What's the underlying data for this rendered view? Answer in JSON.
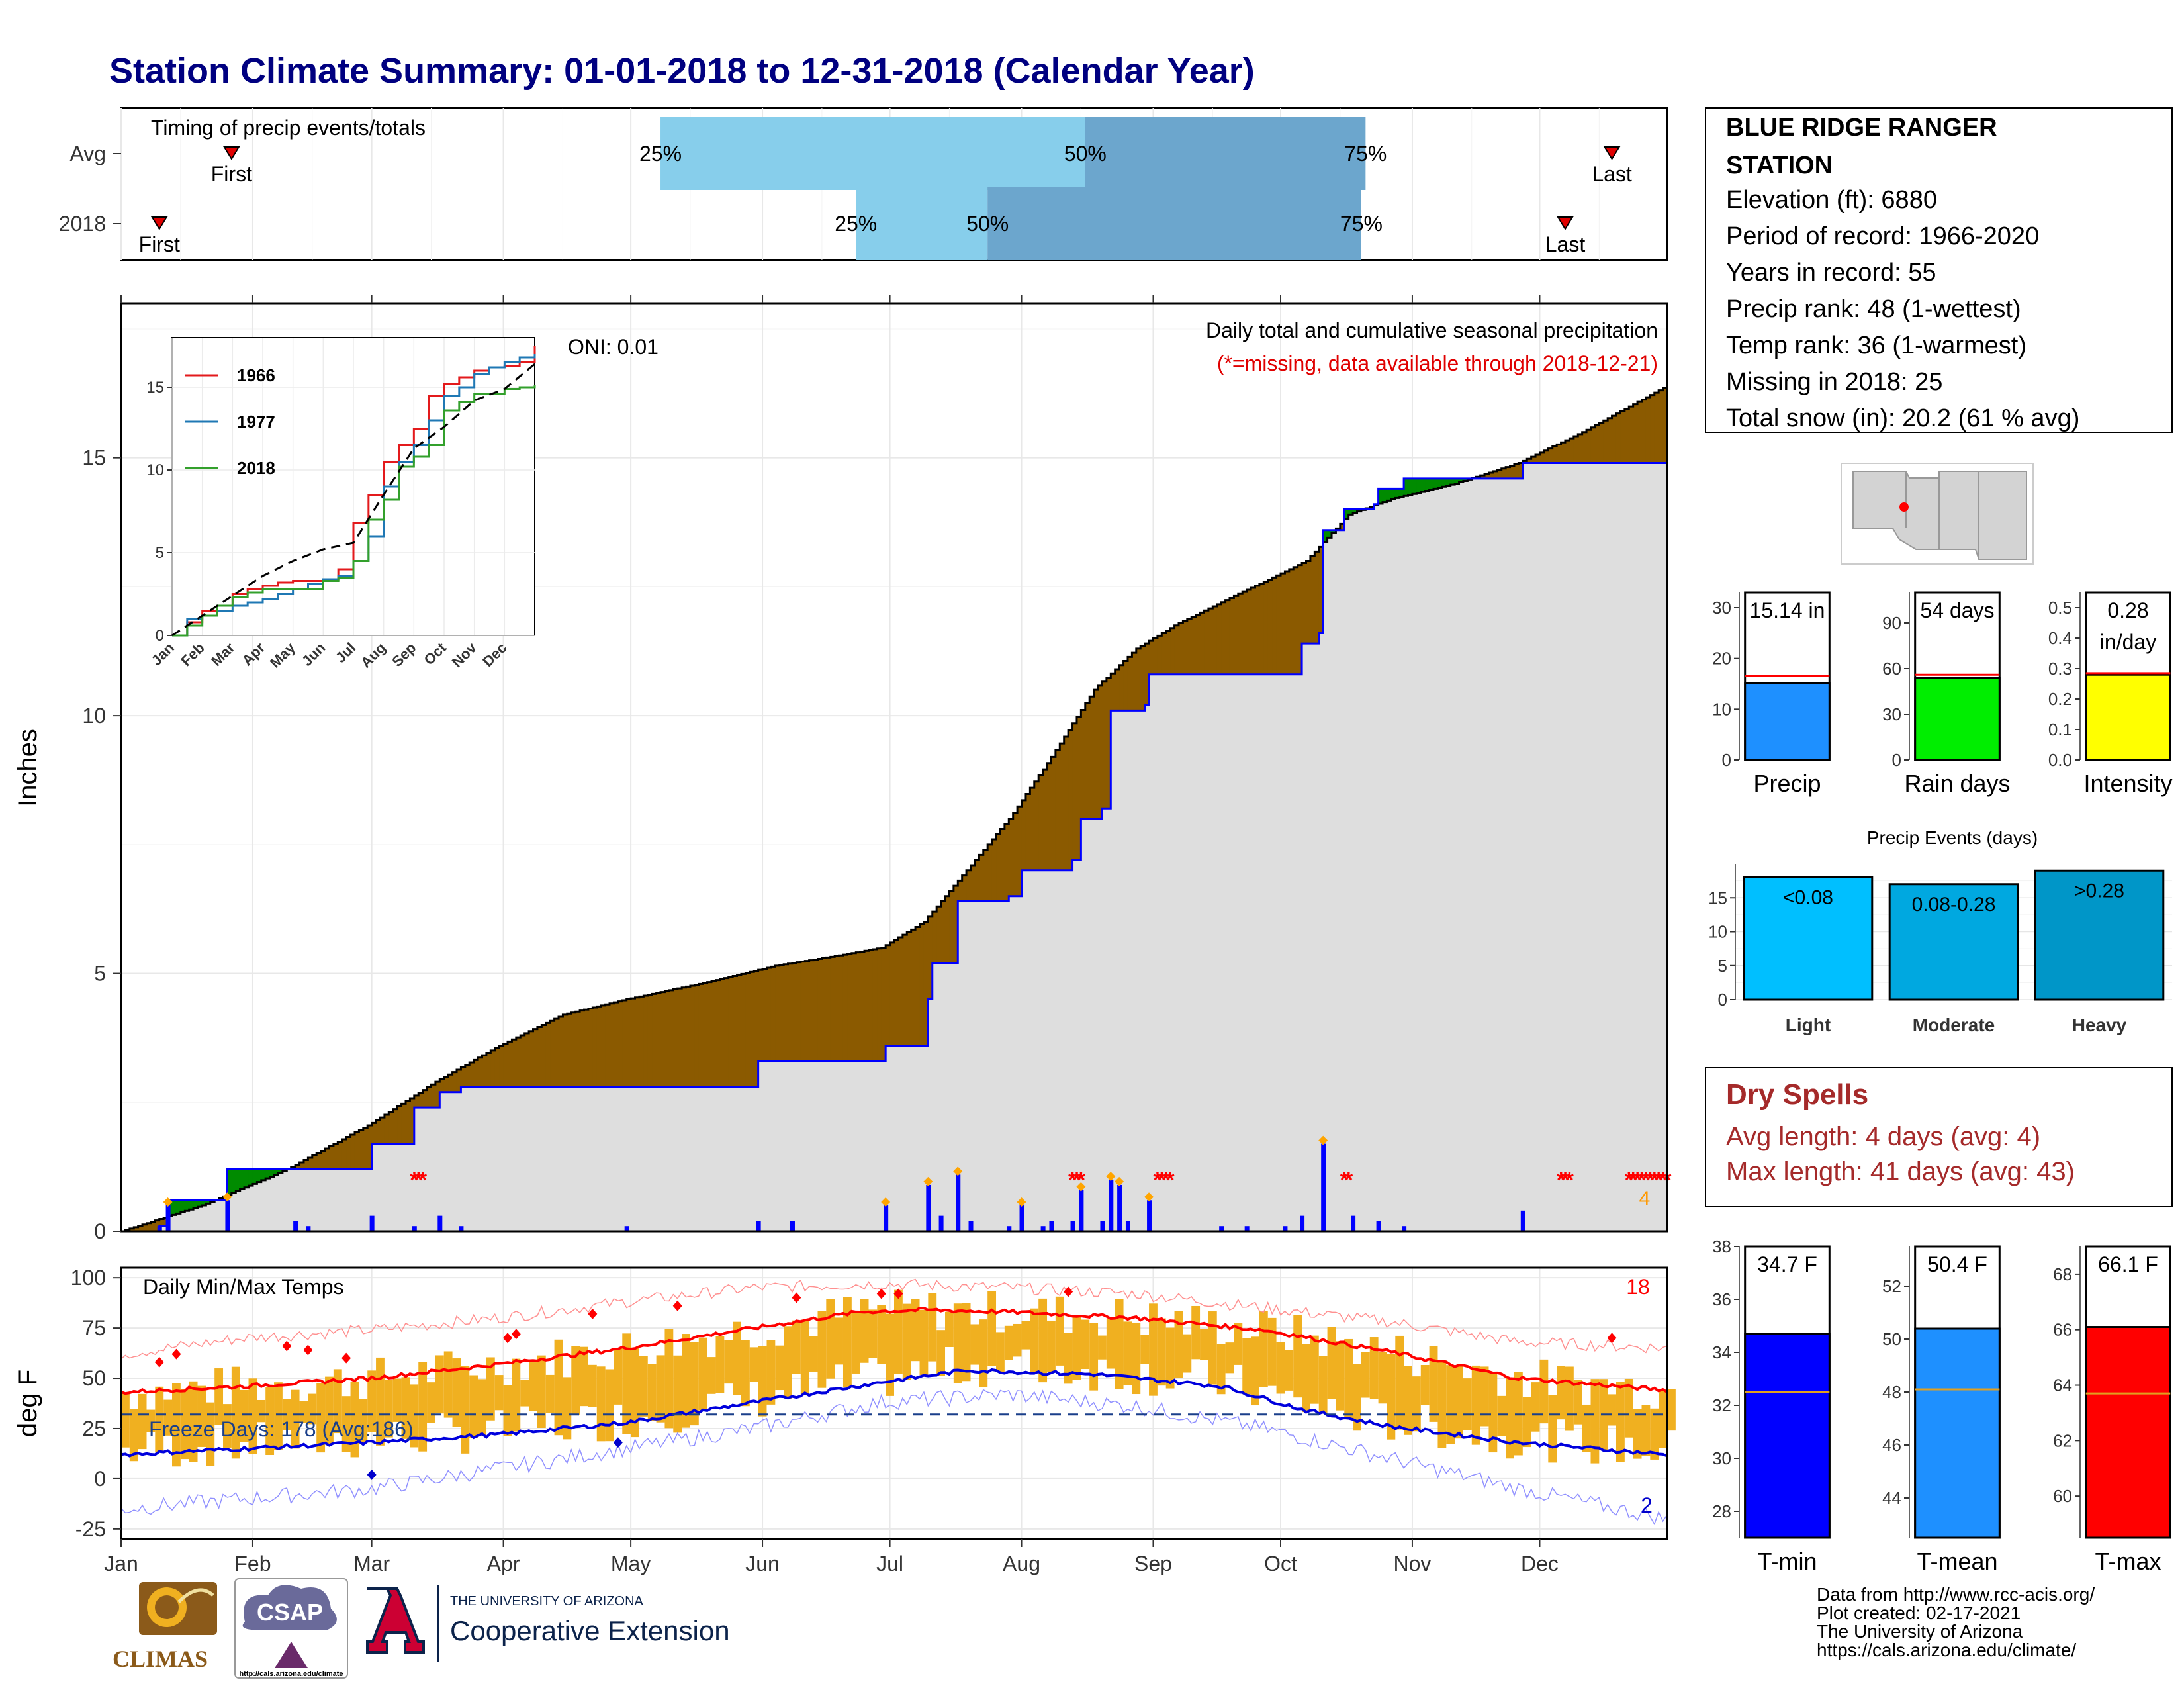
{
  "title": "Station Climate Summary: 01-01-2018 to 12-31-2018 (Calendar Year)",
  "station": {
    "name_line1": "BLUE RIDGE RANGER",
    "name_line2": "STATION",
    "elevation": "Elevation (ft): 6880",
    "period": "Period of record: 1966-2020",
    "years": "Years in record: 55",
    "precip_rank": "Precip rank: 48 (1-wettest)",
    "temp_rank": "Temp rank: 36 (1-warmest)",
    "missing": "Missing in 2018: 25",
    "snow": "Total snow (in): 20.2 (61 % avg)"
  },
  "timing": {
    "heading": "Timing of precip events/totals",
    "rows": [
      {
        "label": "Avg",
        "first_day": 27,
        "p25_day": 128,
        "p50_day": 228,
        "p75_day": 294,
        "last_day": 352,
        "first_label": "First",
        "last_label": "Last",
        "p25_label": "25%",
        "p50_label": "50%",
        "p75_label": "75%"
      },
      {
        "label": "2018",
        "first_day": 10,
        "p25_day": 174,
        "p50_day": 205,
        "p75_day": 293,
        "last_day": 341,
        "first_label": "First",
        "last_label": "Last",
        "p25_label": "25%",
        "p50_label": "50%",
        "p75_label": "75%"
      }
    ]
  },
  "precip_panel": {
    "ylabel": "Inches",
    "yticks": [
      "0",
      "5",
      "10",
      "15"
    ],
    "title_line1": "Daily total and cumulative seasonal precipitation",
    "title_line2": "(*=missing, data available through 2018-12-21)",
    "oni": "ONI: 0.01",
    "count_label": "4"
  },
  "inset": {
    "yticks": [
      "0",
      "5",
      "10",
      "15"
    ],
    "months": [
      "Jan",
      "Feb",
      "Mar",
      "Apr",
      "May",
      "Jun",
      "Jul",
      "Aug",
      "Sep",
      "Oct",
      "Nov",
      "Dec"
    ],
    "legend": [
      "1966",
      "1977",
      "2018"
    ]
  },
  "temp_panel": {
    "ylabel": "deg F",
    "heading": "Daily Min/Max Temps",
    "freeze": "Freeze Days: 178 (Avg:186)",
    "yticks": [
      "100",
      "75",
      "50",
      "25",
      "0",
      "-25"
    ],
    "count_high": "18",
    "count_low": "2"
  },
  "months": [
    "Jan",
    "Feb",
    "Mar",
    "Apr",
    "May",
    "Jun",
    "Jul",
    "Aug",
    "Sep",
    "Oct",
    "Nov",
    "Dec"
  ],
  "bars_top": [
    {
      "label": "Precip",
      "value_label": "15.14 in",
      "yticks": [
        "0",
        "10",
        "20",
        "30"
      ],
      "ymax": 33,
      "value": 15.14,
      "avg": 16.5,
      "color": "#1e90ff"
    },
    {
      "label": "Rain days",
      "value_label": "54 days",
      "yticks": [
        "0",
        "30",
        "60",
        "90"
      ],
      "ymax": 110,
      "value": 54,
      "avg": 56,
      "color": "#00ee00"
    },
    {
      "label": "Intensity",
      "value_label_1": "0.28",
      "value_label_2": "in/day",
      "yticks": [
        "0.0",
        "0.1",
        "0.2",
        "0.3",
        "0.4",
        "0.5"
      ],
      "ymax": 0.55,
      "value": 0.28,
      "avg": 0.285,
      "color": "#ffff00"
    }
  ],
  "events": {
    "title": "Precip Events (days)",
    "yticks": [
      "0",
      "5",
      "10",
      "15"
    ],
    "ymax": 20,
    "bars": [
      {
        "cat": "Light",
        "label": "<0.08",
        "value": 18,
        "color": "#00bfff"
      },
      {
        "cat": "Moderate",
        "label": "0.08-0.28",
        "value": 17,
        "color": "#00a8e0"
      },
      {
        "cat": "Heavy",
        "label": ">0.28",
        "value": 19,
        "color": "#0096c8"
      }
    ]
  },
  "dry_spells": {
    "title": "Dry Spells",
    "avg": "Avg length: 4 days (avg: 4)",
    "max": "Max length: 41 days (avg: 43)"
  },
  "bars_temp": [
    {
      "label": "T-min",
      "value_label": "34.7 F",
      "yticks": [
        "28",
        "30",
        "32",
        "34",
        "36",
        "38"
      ],
      "ymin": 27,
      "ymax": 38,
      "value": 34.7,
      "avg": 32.5,
      "color": "#0000ff"
    },
    {
      "label": "T-mean",
      "value_label": "50.4 F",
      "yticks": [
        "44",
        "46",
        "48",
        "50",
        "52"
      ],
      "ymin": 42.5,
      "ymax": 53.5,
      "value": 50.4,
      "avg": 48.1,
      "color": "#1e90ff"
    },
    {
      "label": "T-max",
      "value_label": "66.1 F",
      "yticks": [
        "60",
        "62",
        "64",
        "66",
        "68"
      ],
      "ymin": 58.5,
      "ymax": 69,
      "value": 66.1,
      "avg": 63.7,
      "color": "#ff0000"
    }
  ],
  "credits": {
    "line1": "Data from http://www.rcc-acis.org/",
    "line2": "Plot created: 02-17-2021",
    "line3": "The University of Arizona",
    "line4": "https://cals.arizona.edu/climate/"
  },
  "logos": {
    "climas": "CLIMAS",
    "csap": "CSAP",
    "csap_url": "http://cals.arizona.edu/climate",
    "ua_small": "THE UNIVERSITY OF ARIZONA",
    "ua_big": "Cooperative Extension"
  },
  "chart_data": [
    {
      "type": "area",
      "name": "cumulative precipitation 2018 vs average",
      "x_unit": "day of year",
      "y_unit": "inches",
      "ylim": [
        0,
        18
      ],
      "avg_cumulative": [
        [
          1,
          0
        ],
        [
          20,
          0.5
        ],
        [
          40,
          1.2
        ],
        [
          60,
          2.1
        ],
        [
          75,
          2.9
        ],
        [
          90,
          3.6
        ],
        [
          105,
          4.2
        ],
        [
          120,
          4.5
        ],
        [
          140,
          4.85
        ],
        [
          155,
          5.15
        ],
        [
          170,
          5.35
        ],
        [
          180,
          5.5
        ],
        [
          190,
          6.0
        ],
        [
          200,
          7.0
        ],
        [
          210,
          8.0
        ],
        [
          220,
          9.2
        ],
        [
          230,
          10.5
        ],
        [
          240,
          11.3
        ],
        [
          250,
          11.8
        ],
        [
          260,
          12.2
        ],
        [
          270,
          12.6
        ],
        [
          280,
          13.0
        ],
        [
          290,
          13.9
        ],
        [
          300,
          14.2
        ],
        [
          315,
          14.5
        ],
        [
          330,
          14.9
        ],
        [
          345,
          15.5
        ],
        [
          365,
          16.4
        ]
      ],
      "obs_cumulative": [
        [
          1,
          0
        ],
        [
          10,
          0.1
        ],
        [
          12,
          0.6
        ],
        [
          25,
          0.6
        ],
        [
          26,
          1.2
        ],
        [
          45,
          1.2
        ],
        [
          60,
          1.7
        ],
        [
          70,
          2.4
        ],
        [
          76,
          2.7
        ],
        [
          80,
          2.7
        ],
        [
          81,
          2.8
        ],
        [
          150,
          2.8
        ],
        [
          151,
          3.3
        ],
        [
          180,
          3.3
        ],
        [
          181,
          3.6
        ],
        [
          190,
          3.6
        ],
        [
          191,
          4.5
        ],
        [
          192,
          5.2
        ],
        [
          197,
          5.2
        ],
        [
          198,
          6.4
        ],
        [
          210,
          6.5
        ],
        [
          213,
          7.0
        ],
        [
          225,
          7.2
        ],
        [
          227,
          8.0
        ],
        [
          232,
          8.2
        ],
        [
          234,
          10.1
        ],
        [
          242,
          10.2
        ],
        [
          243,
          10.8
        ],
        [
          278,
          10.8
        ],
        [
          279,
          11.4
        ],
        [
          283,
          11.6
        ],
        [
          284,
          13.6
        ],
        [
          288,
          13.6
        ],
        [
          289,
          14.0
        ],
        [
          296,
          14.1
        ],
        [
          297,
          14.4
        ],
        [
          302,
          14.4
        ],
        [
          303,
          14.6
        ],
        [
          330,
          14.6
        ],
        [
          331,
          14.9
        ],
        [
          365,
          15.14
        ]
      ],
      "daily_precip": [
        [
          10,
          0.1
        ],
        [
          12,
          0.5
        ],
        [
          26,
          0.6
        ],
        [
          42,
          0.2
        ],
        [
          45,
          0.1
        ],
        [
          60,
          0.3
        ],
        [
          70,
          0.1
        ],
        [
          76,
          0.3
        ],
        [
          81,
          0.1
        ],
        [
          120,
          0.1
        ],
        [
          151,
          0.2
        ],
        [
          159,
          0.2
        ],
        [
          181,
          0.5
        ],
        [
          191,
          0.9
        ],
        [
          194,
          0.3
        ],
        [
          198,
          1.1
        ],
        [
          201,
          0.2
        ],
        [
          210,
          0.1
        ],
        [
          213,
          0.5
        ],
        [
          218,
          0.1
        ],
        [
          220,
          0.2
        ],
        [
          225,
          0.2
        ],
        [
          227,
          0.8
        ],
        [
          232,
          0.2
        ],
        [
          234,
          1.0
        ],
        [
          236,
          0.9
        ],
        [
          238,
          0.2
        ],
        [
          243,
          0.6
        ],
        [
          260,
          0.1
        ],
        [
          266,
          0.1
        ],
        [
          275,
          0.1
        ],
        [
          279,
          0.3
        ],
        [
          284,
          1.7
        ],
        [
          291,
          0.3
        ],
        [
          297,
          0.2
        ],
        [
          303,
          0.1
        ],
        [
          331,
          0.4
        ]
      ],
      "missing_days": [
        70,
        71,
        72,
        225,
        226,
        227,
        245,
        246,
        247,
        248,
        289,
        290,
        340,
        341,
        342,
        356,
        357,
        358,
        359,
        360,
        361,
        362,
        363,
        364,
        365
      ]
    },
    {
      "type": "line",
      "name": "inset cumulative precipitation",
      "x_unit": "month",
      "y_unit": "inches",
      "ylim": [
        0,
        18
      ],
      "series": [
        {
          "name": "1966",
          "color": "#e31a1c",
          "x": [
            0,
            0.5,
            1,
            1.5,
            2,
            2.5,
            3,
            3.5,
            4,
            4.5,
            5,
            5.5,
            6,
            6.5,
            7,
            7.5,
            8,
            8.5,
            9,
            9.5,
            10,
            10.5,
            11,
            11.5,
            12
          ],
          "values": [
            0,
            0.8,
            1.5,
            1.8,
            2.5,
            2.8,
            3.0,
            3.2,
            3.3,
            3.3,
            3.4,
            4.0,
            6.8,
            8.5,
            10.5,
            11.5,
            12.5,
            14.5,
            15.2,
            15.6,
            16.0,
            16.2,
            16.3,
            16.5,
            17.5
          ]
        },
        {
          "name": "1977",
          "color": "#1f78b4",
          "x": [
            0,
            0.5,
            1,
            1.5,
            2,
            2.5,
            3,
            3.5,
            4,
            4.5,
            5,
            5.5,
            6,
            6.5,
            7,
            7.5,
            8,
            8.5,
            9,
            9.5,
            10,
            10.5,
            11,
            11.5,
            12
          ],
          "values": [
            0,
            1.0,
            1.2,
            1.5,
            1.8,
            2.0,
            2.2,
            2.5,
            2.8,
            3.1,
            3.4,
            3.6,
            4.5,
            6.0,
            9.0,
            10.5,
            11.5,
            13.0,
            14.5,
            15.0,
            15.8,
            16.2,
            16.5,
            16.8,
            17.0
          ]
        },
        {
          "name": "2018",
          "color": "#33a02c",
          "x": [
            0,
            0.5,
            1,
            1.5,
            2,
            2.5,
            3,
            3.5,
            4,
            4.5,
            5,
            5.5,
            6,
            6.5,
            7,
            7.5,
            8,
            8.5,
            9,
            9.5,
            10,
            10.5,
            11,
            11.5,
            12
          ],
          "values": [
            0,
            0.6,
            1.2,
            1.8,
            2.3,
            2.6,
            2.8,
            2.8,
            2.8,
            2.8,
            3.3,
            3.5,
            4.5,
            7.0,
            8.2,
            10.2,
            10.8,
            11.5,
            13.6,
            14.1,
            14.6,
            14.6,
            14.9,
            15.0,
            15.14
          ]
        },
        {
          "name": "Average",
          "color": "#000000",
          "x": [
            0,
            1,
            2,
            3,
            4,
            5,
            6,
            7,
            8,
            9,
            10,
            11,
            12
          ],
          "values": [
            0,
            1.2,
            2.4,
            3.6,
            4.5,
            5.2,
            5.6,
            8.5,
            11.3,
            12.6,
            14.2,
            14.9,
            16.4
          ]
        }
      ]
    },
    {
      "type": "bar",
      "name": "daily min/max temperature",
      "x_unit": "day of year",
      "y_unit": "deg F",
      "ylim": [
        -30,
        105
      ],
      "avg_max_F": [
        [
          1,
          43
        ],
        [
          30,
          46
        ],
        [
          60,
          50
        ],
        [
          90,
          57
        ],
        [
          120,
          65
        ],
        [
          150,
          75
        ],
        [
          175,
          83
        ],
        [
          190,
          84
        ],
        [
          210,
          83
        ],
        [
          240,
          80
        ],
        [
          270,
          74
        ],
        [
          300,
          63
        ],
        [
          330,
          50
        ],
        [
          365,
          44
        ]
      ],
      "avg_min_F": [
        [
          1,
          12
        ],
        [
          30,
          15
        ],
        [
          60,
          18
        ],
        [
          90,
          22
        ],
        [
          120,
          28
        ],
        [
          150,
          38
        ],
        [
          180,
          48
        ],
        [
          200,
          54
        ],
        [
          230,
          52
        ],
        [
          260,
          46
        ],
        [
          280,
          34
        ],
        [
          300,
          26
        ],
        [
          330,
          18
        ],
        [
          365,
          12
        ]
      ],
      "record_high_F": [
        [
          1,
          62
        ],
        [
          30,
          70
        ],
        [
          60,
          74
        ],
        [
          90,
          80
        ],
        [
          120,
          88
        ],
        [
          150,
          95
        ],
        [
          180,
          97
        ],
        [
          210,
          95
        ],
        [
          240,
          92
        ],
        [
          270,
          85
        ],
        [
          300,
          78
        ],
        [
          330,
          68
        ],
        [
          365,
          65
        ]
      ],
      "record_low_F": [
        [
          1,
          -15
        ],
        [
          30,
          -10
        ],
        [
          60,
          -5
        ],
        [
          90,
          5
        ],
        [
          120,
          15
        ],
        [
          150,
          25
        ],
        [
          180,
          38
        ],
        [
          210,
          42
        ],
        [
          240,
          36
        ],
        [
          270,
          25
        ],
        [
          300,
          10
        ],
        [
          330,
          -5
        ],
        [
          365,
          -20
        ]
      ],
      "freeze_threshold_F": 32
    }
  ]
}
